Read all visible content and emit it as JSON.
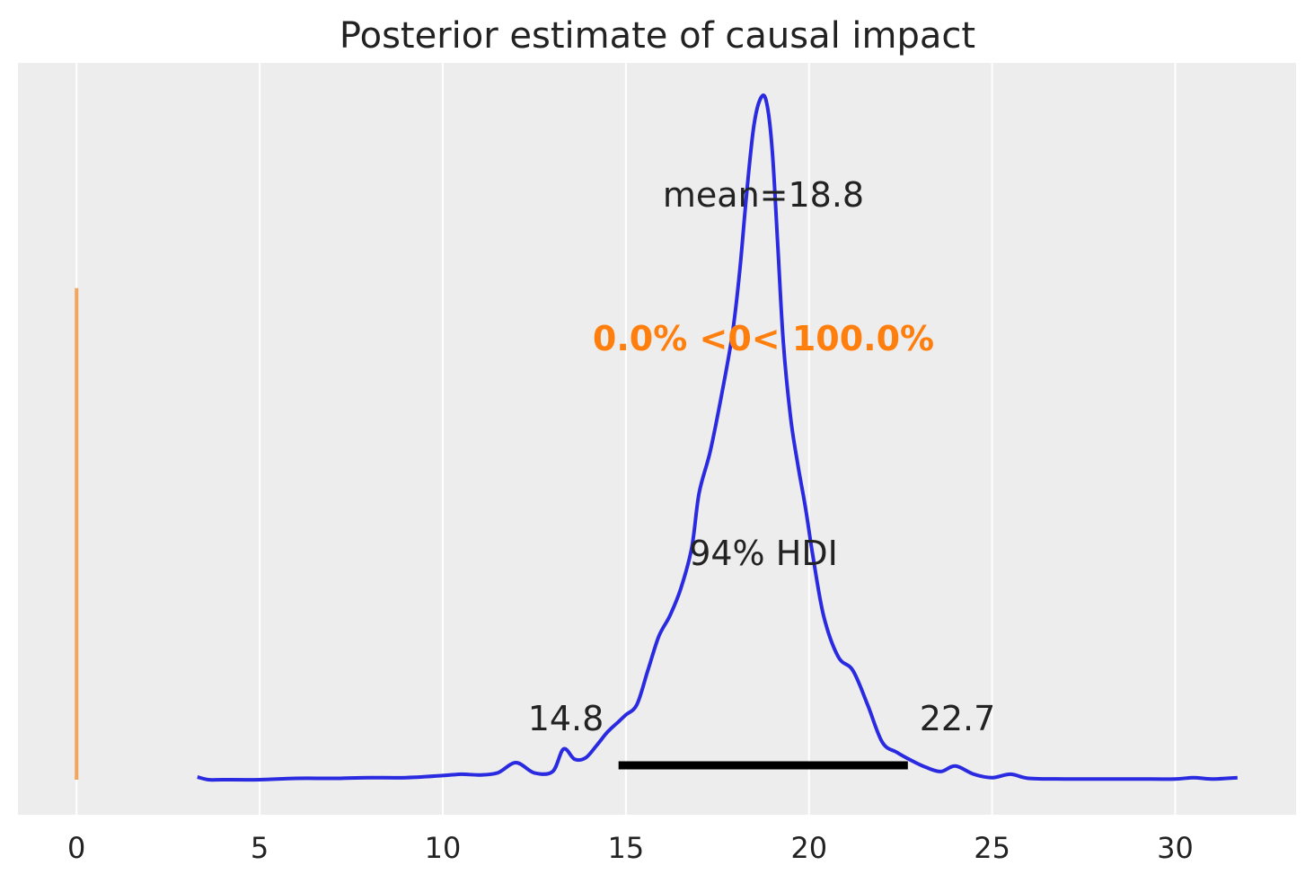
{
  "chart_data": {
    "type": "line",
    "title": "Posterior estimate of causal impact",
    "xlabel": "",
    "ylabel": "",
    "xlim": [
      -1.6,
      33.3
    ],
    "ylim": [
      0,
      1
    ],
    "grid": "vertical",
    "x_ticks": [
      0,
      5,
      10,
      15,
      20,
      25,
      30
    ],
    "x_tick_labels": [
      "0",
      "5",
      "10",
      "15",
      "20",
      "25",
      "30"
    ],
    "colors": {
      "background": "#ededed",
      "density": "#2a2ae0",
      "reference": "#f5a45c",
      "reference_text": "#ff7f0e",
      "hdi": "#000000",
      "text": "#222222"
    },
    "density": {
      "x": [
        3.3,
        3.6,
        4.0,
        5.0,
        6.0,
        7.0,
        8.0,
        9.0,
        10.0,
        10.5,
        11.0,
        11.5,
        12.0,
        12.5,
        13.0,
        13.3,
        13.6,
        13.9,
        14.2,
        14.5,
        14.8,
        15.0,
        15.3,
        15.6,
        15.9,
        16.2,
        16.5,
        16.8,
        17.0,
        17.3,
        17.6,
        17.9,
        18.1,
        18.3,
        18.5,
        18.7,
        18.85,
        19.0,
        19.15,
        19.3,
        19.5,
        19.7,
        19.9,
        20.1,
        20.4,
        20.8,
        21.2,
        21.6,
        22.0,
        22.4,
        22.8,
        23.2,
        23.6,
        24.0,
        24.5,
        25.0,
        25.5,
        26.0,
        27.0,
        28.0,
        29.0,
        30.0,
        30.5,
        31.0,
        31.7
      ],
      "y": [
        0.004,
        0.0,
        0.0,
        0.0,
        0.002,
        0.002,
        0.003,
        0.003,
        0.006,
        0.008,
        0.007,
        0.01,
        0.025,
        0.01,
        0.012,
        0.045,
        0.03,
        0.032,
        0.05,
        0.07,
        0.085,
        0.095,
        0.11,
        0.16,
        0.21,
        0.24,
        0.28,
        0.34,
        0.42,
        0.48,
        0.56,
        0.65,
        0.74,
        0.86,
        0.96,
        1.0,
        0.99,
        0.92,
        0.78,
        0.64,
        0.53,
        0.46,
        0.4,
        0.33,
        0.24,
        0.18,
        0.16,
        0.11,
        0.055,
        0.04,
        0.028,
        0.018,
        0.012,
        0.02,
        0.008,
        0.003,
        0.008,
        0.002,
        0.001,
        0.001,
        0.001,
        0.001,
        0.003,
        0.001,
        0.003
      ]
    },
    "reference_line": {
      "x": 0,
      "y_from": 0,
      "y_to": 0.72
    },
    "mean": 18.8,
    "hdi": {
      "prob_label": "94% HDI",
      "low": 14.8,
      "high": 22.7
    },
    "annotations": {
      "mean_text": "mean=18.8",
      "reference_text": "0.0% <0< 100.0%",
      "hdi_low_text": "14.8",
      "hdi_high_text": "22.7",
      "hdi_label_text": "94% HDI"
    }
  }
}
